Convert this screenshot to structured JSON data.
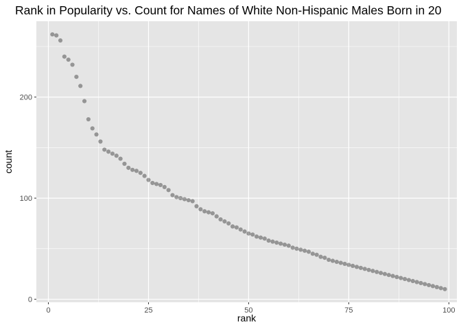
{
  "chart_data": {
    "type": "scatter",
    "title": "Rank in Popularity vs. Count for Names of White Non-Hispanic Males Born in 20",
    "xlabel": "rank",
    "ylabel": "count",
    "xlim": [
      -3,
      102
    ],
    "ylim": [
      -3,
      275
    ],
    "x_ticks": [
      0,
      25,
      50,
      75,
      100
    ],
    "y_ticks": [
      0,
      100,
      200
    ],
    "grid": true,
    "legend": "none",
    "colors": {
      "panel": "#e5e5e5",
      "gridline": "#ffffff",
      "point": "#000000"
    },
    "points": [
      [
        1,
        262
      ],
      [
        2,
        261
      ],
      [
        3,
        256
      ],
      [
        4,
        240
      ],
      [
        5,
        237
      ],
      [
        6,
        232
      ],
      [
        7,
        220
      ],
      [
        8,
        211
      ],
      [
        9,
        196
      ],
      [
        10,
        178
      ],
      [
        11,
        169
      ],
      [
        12,
        163
      ],
      [
        13,
        156
      ],
      [
        14,
        148
      ],
      [
        15,
        146
      ],
      [
        16,
        144
      ],
      [
        17,
        142
      ],
      [
        18,
        139
      ],
      [
        19,
        134
      ],
      [
        20,
        130
      ],
      [
        21,
        128
      ],
      [
        22,
        127
      ],
      [
        23,
        125
      ],
      [
        24,
        122
      ],
      [
        25,
        118
      ],
      [
        26,
        115
      ],
      [
        27,
        114
      ],
      [
        28,
        113
      ],
      [
        29,
        111
      ],
      [
        30,
        108
      ],
      [
        31,
        103
      ],
      [
        32,
        101
      ],
      [
        33,
        100
      ],
      [
        34,
        99
      ],
      [
        35,
        98
      ],
      [
        36,
        97
      ],
      [
        37,
        92
      ],
      [
        38,
        89
      ],
      [
        39,
        87
      ],
      [
        40,
        86
      ],
      [
        41,
        85
      ],
      [
        42,
        82
      ],
      [
        43,
        79
      ],
      [
        44,
        77
      ],
      [
        45,
        75
      ],
      [
        46,
        72
      ],
      [
        47,
        71
      ],
      [
        48,
        69
      ],
      [
        49,
        67
      ],
      [
        50,
        65
      ],
      [
        51,
        64
      ],
      [
        52,
        62
      ],
      [
        53,
        61
      ],
      [
        54,
        60
      ],
      [
        55,
        58
      ],
      [
        56,
        57
      ],
      [
        57,
        56
      ],
      [
        58,
        55
      ],
      [
        59,
        54
      ],
      [
        60,
        53
      ],
      [
        61,
        51
      ],
      [
        62,
        50
      ],
      [
        63,
        49
      ],
      [
        64,
        48
      ],
      [
        65,
        47
      ],
      [
        66,
        45
      ],
      [
        67,
        44
      ],
      [
        68,
        42
      ],
      [
        69,
        41
      ],
      [
        70,
        39
      ],
      [
        71,
        38
      ],
      [
        72,
        37
      ],
      [
        73,
        36
      ],
      [
        74,
        35
      ],
      [
        75,
        34
      ],
      [
        76,
        33
      ],
      [
        77,
        32
      ],
      [
        78,
        31
      ],
      [
        79,
        30
      ],
      [
        80,
        29
      ],
      [
        81,
        28
      ],
      [
        82,
        27
      ],
      [
        83,
        26
      ],
      [
        84,
        25
      ],
      [
        85,
        24
      ],
      [
        86,
        23
      ],
      [
        87,
        22
      ],
      [
        88,
        21
      ],
      [
        89,
        20
      ],
      [
        90,
        19
      ],
      [
        91,
        18
      ],
      [
        92,
        17
      ],
      [
        93,
        16
      ],
      [
        94,
        15
      ],
      [
        95,
        14
      ],
      [
        96,
        13
      ],
      [
        97,
        12
      ],
      [
        98,
        11
      ],
      [
        99,
        10
      ]
    ],
    "point_alpha": 0.35
  }
}
